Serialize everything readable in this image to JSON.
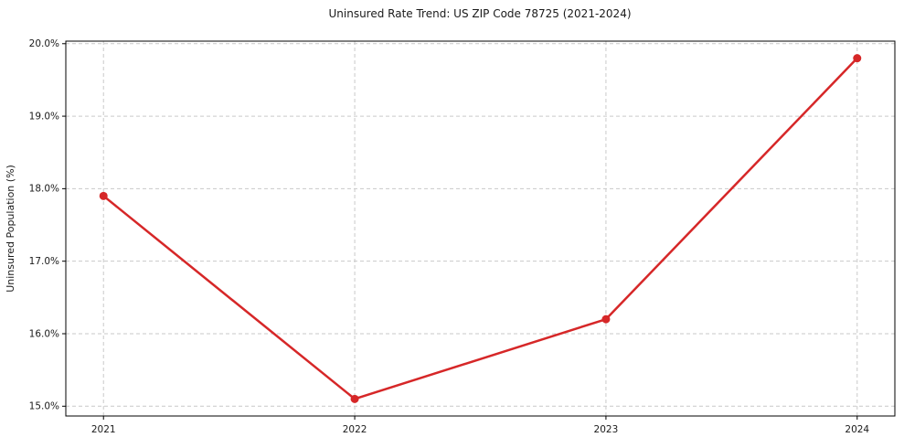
{
  "figure": {
    "title": "Uninsured Rate Trend: US ZIP Code 78725 (2021-2024)"
  },
  "chart_data": {
    "type": "line",
    "title": "Uninsured Rate Trend: US ZIP Code 78725 (2021-2024)",
    "xlabel": "",
    "ylabel": "Uninsured Population (%)",
    "x": [
      2021,
      2022,
      2023,
      2024
    ],
    "series": [
      {
        "name": "Uninsured Rate",
        "values": [
          17.9,
          15.1,
          16.2,
          19.8
        ]
      }
    ],
    "xticks": {
      "values": [
        2021,
        2022,
        2023,
        2024
      ],
      "labels": [
        "2021",
        "2022",
        "2023",
        "2024"
      ]
    },
    "yticks": {
      "values": [
        15,
        16,
        17,
        18,
        19,
        20
      ],
      "labels": [
        "15.0%",
        "16.0%",
        "17.0%",
        "18.0%",
        "19.0%",
        "20.0%"
      ]
    },
    "xlim": [
      2020.85,
      2024.15
    ],
    "ylim": [
      14.865,
      20.035
    ],
    "grid": true,
    "legend": "none",
    "colors": {
      "line": "#d62728",
      "marker": "#d62728",
      "grid": "#c9c9c9",
      "axis": "#000000",
      "text": "#1a1a1a",
      "background": "#ffffff"
    }
  }
}
